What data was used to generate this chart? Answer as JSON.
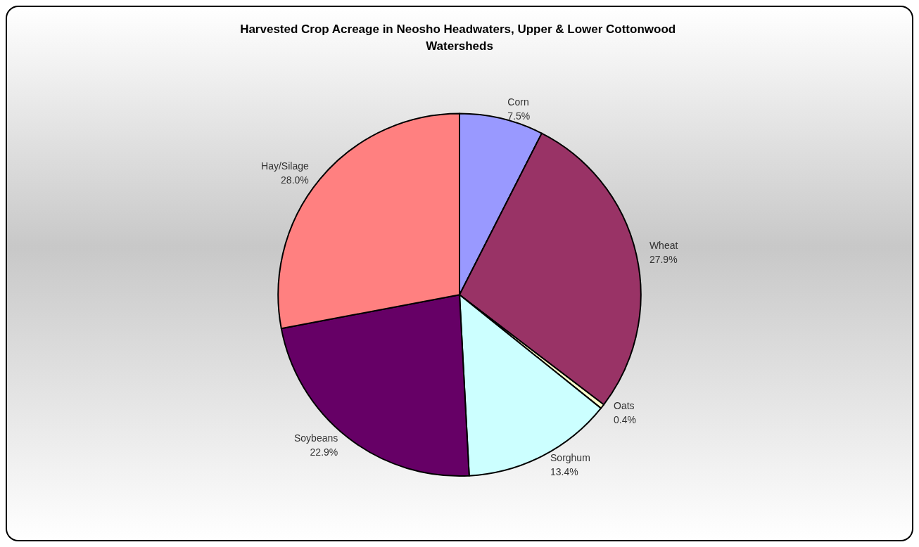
{
  "chart_data": {
    "type": "pie",
    "title": "Harvested Crop Acreage in Neosho Headwaters, Upper & Lower Cottonwood Watersheds",
    "categories": [
      "Corn",
      "Wheat",
      "Oats",
      "Sorghum",
      "Soybeans",
      "Hay/Silage"
    ],
    "values": [
      7.5,
      27.9,
      0.4,
      13.4,
      22.9,
      28.0
    ],
    "value_labels": [
      "7.5%",
      "27.9%",
      "0.4%",
      "13.4%",
      "22.9%",
      "28.0%"
    ],
    "colors": [
      "#9999ff",
      "#993366",
      "#ffffcc",
      "#ccffff",
      "#660066",
      "#ff8080"
    ],
    "legend": false
  }
}
